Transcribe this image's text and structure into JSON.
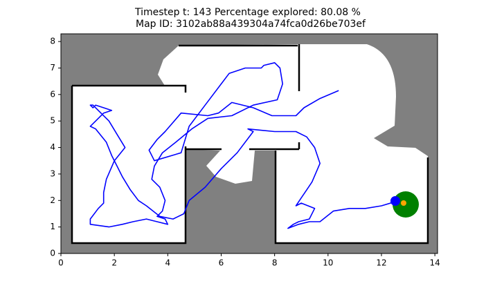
{
  "chart_data": {
    "type": "line",
    "title": "Timestep t: 143   Percentage explored: 80.08 %",
    "subtitle": "Map ID: 3102ab88a439304a74fca0d26be703ef",
    "xlim": [
      0,
      14.1
    ],
    "ylim": [
      0,
      8.29
    ],
    "xticks": [
      0,
      2,
      4,
      6,
      8,
      10,
      12,
      14
    ],
    "yticks": [
      0,
      1,
      2,
      3,
      4,
      5,
      6,
      7,
      8
    ],
    "series": [
      {
        "color": "#0000ff",
        "x": [
          10.4,
          9.7,
          9.1,
          8.8,
          7.9,
          7.2,
          6.4,
          5.9,
          5.5,
          4.5,
          3.9,
          3.6,
          3.3,
          3.5,
          4.5,
          4.8,
          5.4,
          6.0,
          6.3,
          6.9,
          7.5,
          7.6,
          8.0,
          8.2,
          8.3,
          8.1,
          7.2,
          6.4,
          5.5,
          4.9,
          4.3,
          3.8,
          3.5,
          3.4,
          3.7,
          3.9,
          3.8,
          3.6,
          3.9,
          4.0,
          3.6,
          3.2,
          2.7,
          2.3,
          1.8,
          1.1,
          1.1,
          1.4,
          1.6,
          1.6,
          1.7,
          2.0,
          2.4,
          2.1,
          1.8,
          1.4,
          1.2,
          1.1,
          1.2,
          1.3,
          1.6,
          1.9,
          1.6,
          1.3,
          1.1,
          1.3,
          1.7,
          1.9,
          2.1,
          2.3,
          2.6,
          2.9,
          3.2,
          3.7,
          4.2,
          4.6,
          4.8,
          5.4,
          6.0,
          6.6,
          7.2,
          7.0,
          8.0,
          8.8,
          9.2,
          9.5,
          9.7,
          9.4,
          9.2,
          9.0,
          8.8,
          9.0,
          9.5,
          9.3,
          8.9,
          8.7,
          8.5,
          8.9,
          9.3,
          9.7,
          10.2,
          10.8,
          11.4,
          12.0,
          12.5
        ],
        "y": [
          6.15,
          5.85,
          5.5,
          5.2,
          5.2,
          5.5,
          5.7,
          5.3,
          5.2,
          5.3,
          4.6,
          4.3,
          3.9,
          3.5,
          3.8,
          4.8,
          5.6,
          6.4,
          6.8,
          7.0,
          7.0,
          7.1,
          7.2,
          7.0,
          6.4,
          5.8,
          5.6,
          5.2,
          5.1,
          4.7,
          4.2,
          3.8,
          3.3,
          2.8,
          2.5,
          2.0,
          1.6,
          1.4,
          1.3,
          1.1,
          1.2,
          1.3,
          1.2,
          1.1,
          1.0,
          1.1,
          1.3,
          1.7,
          1.9,
          2.3,
          2.8,
          3.5,
          4.0,
          4.5,
          5.0,
          5.4,
          5.6,
          5.6,
          5.5,
          5.6,
          5.5,
          5.4,
          5.3,
          5.0,
          4.8,
          4.7,
          4.2,
          3.7,
          3.3,
          2.9,
          2.4,
          2.0,
          1.8,
          1.4,
          1.3,
          1.5,
          2.0,
          2.5,
          3.2,
          3.8,
          4.6,
          4.7,
          4.6,
          4.6,
          4.4,
          4.0,
          3.4,
          2.7,
          2.4,
          2.1,
          1.8,
          1.9,
          1.7,
          1.3,
          1.2,
          1.1,
          0.95,
          1.1,
          1.2,
          1.2,
          1.6,
          1.7,
          1.7,
          1.8,
          1.95
        ]
      }
    ]
  }
}
